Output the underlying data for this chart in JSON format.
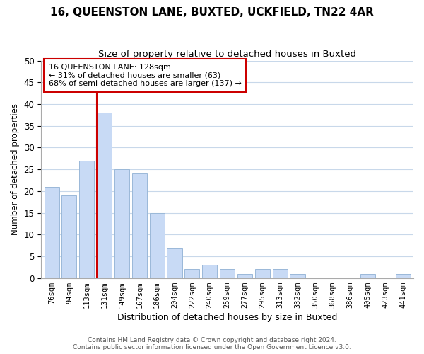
{
  "title": "16, QUEENSTON LANE, BUXTED, UCKFIELD, TN22 4AR",
  "subtitle": "Size of property relative to detached houses in Buxted",
  "xlabel": "Distribution of detached houses by size in Buxted",
  "ylabel": "Number of detached properties",
  "bar_labels": [
    "76sqm",
    "94sqm",
    "113sqm",
    "131sqm",
    "149sqm",
    "167sqm",
    "186sqm",
    "204sqm",
    "222sqm",
    "240sqm",
    "259sqm",
    "277sqm",
    "295sqm",
    "313sqm",
    "332sqm",
    "350sqm",
    "368sqm",
    "386sqm",
    "405sqm",
    "423sqm",
    "441sqm"
  ],
  "bar_values": [
    21,
    19,
    27,
    38,
    25,
    24,
    15,
    7,
    2,
    3,
    2,
    1,
    2,
    2,
    1,
    0,
    0,
    0,
    1,
    0,
    1
  ],
  "bar_color": "#c8daf5",
  "bar_edge_color": "#9ab8d8",
  "vline_x_index": 3,
  "vline_color": "#cc0000",
  "ann_title": "16 QUEENSTON LANE: 128sqm",
  "ann_line1": "← 31% of detached houses are smaller (63)",
  "ann_line2": "68% of semi-detached houses are larger (137) →",
  "annotation_box_edge": "#cc0000",
  "ylim": [
    0,
    50
  ],
  "yticks": [
    0,
    5,
    10,
    15,
    20,
    25,
    30,
    35,
    40,
    45,
    50
  ],
  "footer_line1": "Contains HM Land Registry data © Crown copyright and database right 2024.",
  "footer_line2": "Contains public sector information licensed under the Open Government Licence v3.0.",
  "bg_color": "#ffffff",
  "grid_color": "#c8d8ea"
}
